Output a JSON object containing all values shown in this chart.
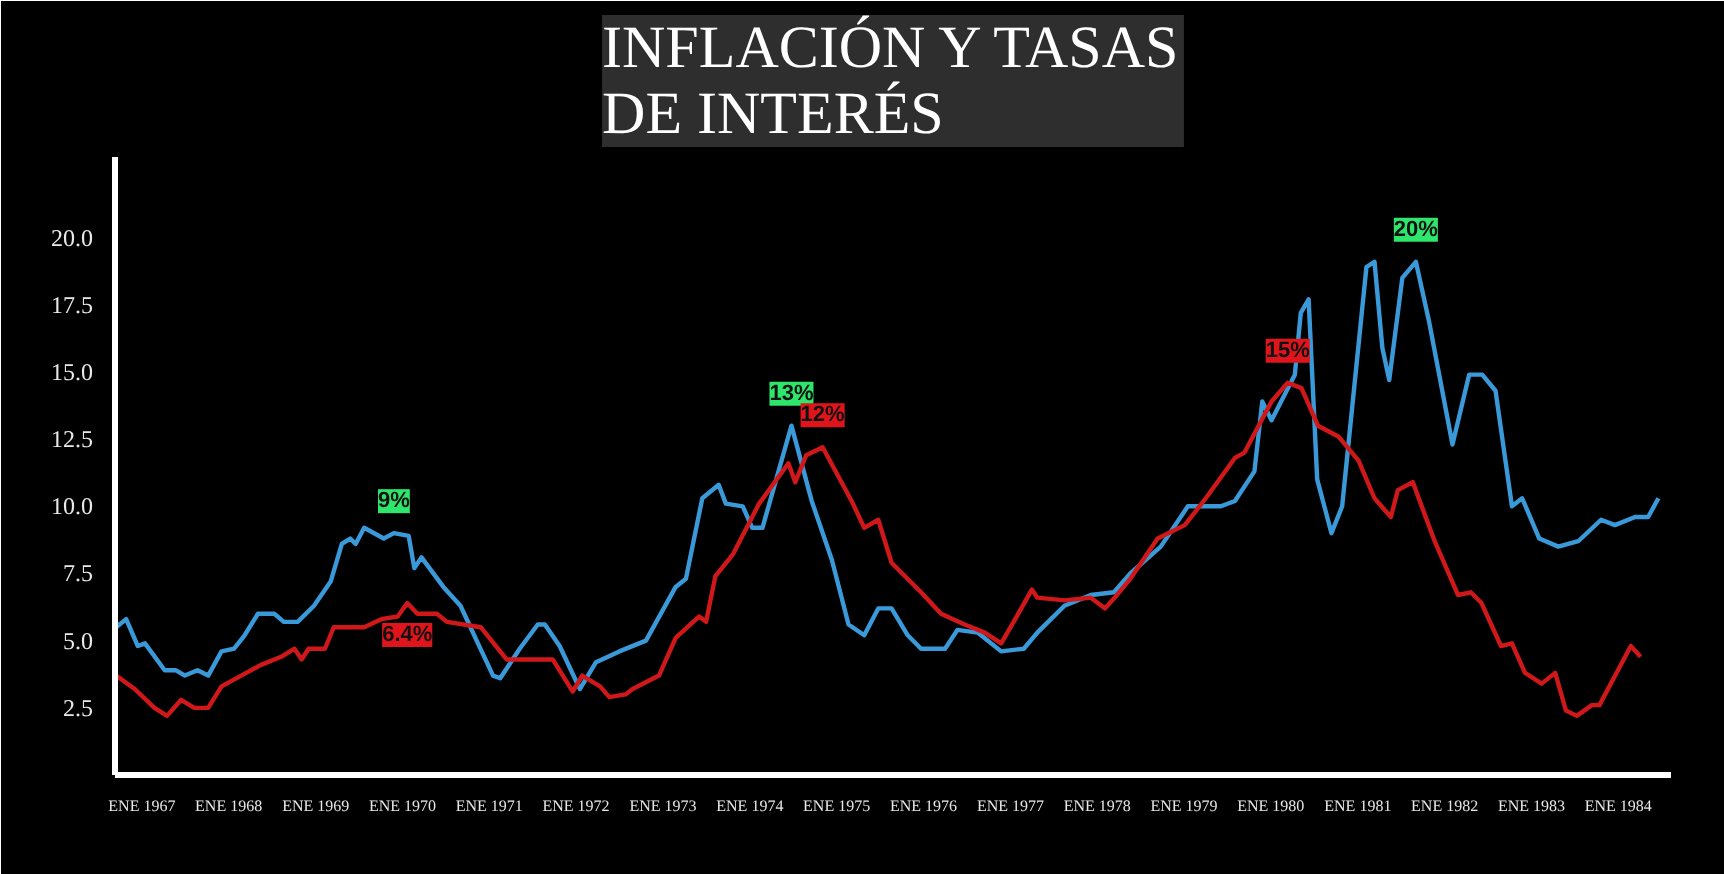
{
  "chart_data": {
    "type": "line",
    "title": "INFLACIÓN Y TASAS\nDE INTERÉS",
    "xlim": [
      "1966-09-10",
      "1984-08-10"
    ],
    "ylim": [
      0,
      23
    ],
    "xticks": [
      {
        "value": "1967-01",
        "label": "ENE 1967"
      },
      {
        "value": "1968-01",
        "label": "ENE 1968"
      },
      {
        "value": "1969-01",
        "label": "ENE 1969"
      },
      {
        "value": "1970-01",
        "label": "ENE 1970"
      },
      {
        "value": "1971-01",
        "label": "ENE 1971"
      },
      {
        "value": "1972-01",
        "label": "ENE 1972"
      },
      {
        "value": "1973-01",
        "label": "ENE 1973"
      },
      {
        "value": "1974-01",
        "label": "ENE 1974"
      },
      {
        "value": "1975-01",
        "label": "ENE 1975"
      },
      {
        "value": "1976-01",
        "label": "ENE 1976"
      },
      {
        "value": "1977-01",
        "label": "ENE 1977"
      },
      {
        "value": "1978-01",
        "label": "ENE 1978"
      },
      {
        "value": "1979-01",
        "label": "ENE 1979"
      },
      {
        "value": "1980-01",
        "label": "ENE 1980"
      },
      {
        "value": "1981-01",
        "label": "ENE 1981"
      },
      {
        "value": "1982-01",
        "label": "ENE 1982"
      },
      {
        "value": "1983-01",
        "label": "ENE 1983"
      },
      {
        "value": "1984-01",
        "label": "ENE 1984"
      }
    ],
    "yticks": [
      {
        "value": 2.5,
        "label": "2.5"
      },
      {
        "value": 5,
        "label": "5.0"
      },
      {
        "value": 7.5,
        "label": "7.5"
      },
      {
        "value": 10,
        "label": "10.0"
      },
      {
        "value": 12.5,
        "label": "12.5"
      },
      {
        "value": 15,
        "label": "15.0"
      },
      {
        "value": 17.5,
        "label": "17.5"
      },
      {
        "value": 20,
        "label": "20.0"
      }
    ],
    "grid": false,
    "line_style": "solid",
    "series": [
      {
        "color": "#3a9ad9",
        "x": [
          "1966-09-15",
          "1966-10-27",
          "1966-12-15",
          "1967-01-14",
          "1967-04-07",
          "1967-05-23",
          "1967-07-01",
          "1967-08-23",
          "1967-10-07",
          "1967-12-02",
          "1968-01-24",
          "1968-03-08",
          "1968-05-03",
          "1968-07-11",
          "1968-08-20",
          "1968-10-17",
          "1968-12-25",
          "1969-03-05",
          "1969-04-21",
          "1969-05-26",
          "1969-06-18",
          "1969-07-24",
          "1969-10-14",
          "1969-11-26",
          "1970-01-27",
          "1970-02-20",
          "1970-03-22",
          "1970-06-22",
          "1970-09-02",
          "1970-11-09",
          "1971-01-17",
          "1971-02-16",
          "1971-05-09",
          "1971-07-24",
          "1971-08-23",
          "1971-10-24",
          "1972-01-17",
          "1972-03-25",
          "1972-07-01",
          "1972-10-21",
          "1973-02-23",
          "1973-04-07",
          "1973-06-15",
          "1973-08-23",
          "1973-09-22",
          "1973-12-02",
          "1974-01-11",
          "1974-02-23",
          "1974-06-25",
          "1974-09-18",
          "1974-12-12",
          "1975-02-20",
          "1975-04-27",
          "1975-06-25",
          "1975-08-20",
          "1975-10-27",
          "1975-12-22",
          "1976-04-01",
          "1976-05-23",
          "1976-08-16",
          "1976-11-23",
          "1977-02-26",
          "1977-04-24",
          "1977-08-16",
          "1977-12-05",
          "1978-03-12",
          "1978-05-20",
          "1978-09-25",
          "1979-01-17",
          "1979-06-05",
          "1979-08-03",
          "1979-10-24",
          "1979-11-26",
          "1980-01-04",
          "1980-04-11",
          "1980-05-06",
          "1980-06-08",
          "1980-07-14",
          "1980-09-12",
          "1980-10-27",
          "1981-02-06",
          "1981-03-12",
          "1981-04-14",
          "1981-05-13",
          "1981-07-07",
          "1981-09-02",
          "1981-10-27",
          "1982-02-03",
          "1982-04-14",
          "1982-06-08",
          "1982-08-03",
          "1982-10-11",
          "1982-11-23",
          "1983-02-03",
          "1983-04-24",
          "1983-07-17",
          "1983-10-21",
          "1983-12-18",
          "1984-03-12",
          "1984-05-06",
          "1984-06-18"
        ],
        "values": [
          5.5,
          5.8,
          4.8,
          4.9,
          3.9,
          3.9,
          3.7,
          3.9,
          3.7,
          4.6,
          4.7,
          5.2,
          6.0,
          6.0,
          5.7,
          5.7,
          6.3,
          7.2,
          8.6,
          8.8,
          8.6,
          9.2,
          8.8,
          9.0,
          8.9,
          7.7,
          8.1,
          7.0,
          6.3,
          5.0,
          3.7,
          3.6,
          4.7,
          5.6,
          5.6,
          4.8,
          3.2,
          4.2,
          4.6,
          5.0,
          7.0,
          7.3,
          10.3,
          10.8,
          10.1,
          10.0,
          9.2,
          9.2,
          13.0,
          10.2,
          8.0,
          5.6,
          5.2,
          6.2,
          6.2,
          5.2,
          4.7,
          4.7,
          5.4,
          5.3,
          4.6,
          4.7,
          5.3,
          6.3,
          6.7,
          6.8,
          7.5,
          8.5,
          10.0,
          10.0,
          10.2,
          11.3,
          13.9,
          13.2,
          14.9,
          17.2,
          17.7,
          11.0,
          9.0,
          10.0,
          18.9,
          19.1,
          15.9,
          14.7,
          18.5,
          19.1,
          16.9,
          12.3,
          14.9,
          14.9,
          14.3,
          10.0,
          10.3,
          8.8,
          8.5,
          8.7,
          9.5,
          9.3,
          9.6,
          9.6,
          10.3
        ]
      },
      {
        "color": "#d0181b",
        "x": [
          "1966-09-15",
          "1966-12-02",
          "1967-02-23",
          "1967-04-17",
          "1967-06-15",
          "1967-08-09",
          "1967-10-07",
          "1967-12-02",
          "1968-02-23",
          "1968-05-16",
          "1968-08-09",
          "1968-10-04",
          "1968-11-03",
          "1968-12-02",
          "1969-02-09",
          "1969-03-18",
          "1969-07-24",
          "1969-10-04",
          "1969-12-12",
          "1970-01-21",
          "1970-03-05",
          "1970-05-26",
          "1970-07-07",
          "1970-11-26",
          "1971-03-15",
          "1971-04-11",
          "1971-09-25",
          "1971-12-18",
          "1972-01-27",
          "1972-04-11",
          "1972-05-20",
          "1972-07-27",
          "1972-08-26",
          "1972-12-15",
          "1973-02-23",
          "1973-06-02",
          "1973-07-01",
          "1973-08-09",
          "1973-10-21",
          "1974-02-09",
          "1974-06-12",
          "1974-07-11",
          "1974-08-26",
          "1974-11-03",
          "1975-03-05",
          "1975-04-27",
          "1975-06-25",
          "1975-08-20",
          "1975-12-22",
          "1976-03-15",
          "1976-06-22",
          "1976-09-15",
          "1976-11-23",
          "1977-01-21",
          "1977-04-01",
          "1977-04-24",
          "1977-08-16",
          "1977-12-05",
          "1978-02-03",
          "1978-03-25",
          "1978-05-20",
          "1978-09-12",
          "1979-01-04",
          "1979-03-25",
          "1979-08-03",
          "1979-09-12",
          "1980-01-04",
          "1980-03-12",
          "1980-05-09",
          "1980-07-17",
          "1980-10-11",
          "1981-01-04",
          "1981-03-12",
          "1981-05-20",
          "1981-06-18",
          "1981-08-20",
          "1981-11-20",
          "1982-02-26",
          "1982-04-21",
          "1982-06-05",
          "1982-08-26",
          "1982-10-11",
          "1982-12-05",
          "1983-02-13",
          "1983-04-11",
          "1983-05-26",
          "1983-07-11",
          "1983-09-12",
          "1983-10-14",
          "1984-02-23",
          "1984-04-04"
        ],
        "values": [
          3.7,
          3.2,
          2.5,
          2.2,
          2.8,
          2.5,
          2.5,
          3.3,
          3.7,
          4.1,
          4.4,
          4.7,
          4.3,
          4.7,
          4.7,
          5.5,
          5.5,
          5.8,
          5.9,
          6.4,
          6.0,
          6.0,
          5.7,
          5.5,
          4.3,
          4.3,
          4.3,
          3.1,
          3.7,
          3.3,
          2.9,
          3.0,
          3.2,
          3.7,
          5.1,
          5.9,
          5.7,
          7.4,
          8.2,
          10.1,
          11.6,
          10.9,
          11.9,
          12.2,
          10.2,
          9.2,
          9.5,
          7.9,
          6.8,
          6.0,
          5.6,
          5.3,
          4.9,
          5.8,
          6.9,
          6.6,
          6.5,
          6.6,
          6.2,
          6.7,
          7.3,
          8.8,
          9.3,
          10.2,
          11.8,
          12.0,
          13.9,
          14.6,
          14.4,
          13.0,
          12.6,
          11.7,
          10.3,
          9.6,
          10.6,
          10.9,
          8.7,
          6.7,
          6.8,
          6.4,
          4.8,
          4.9,
          3.8,
          3.4,
          3.8,
          2.4,
          2.2,
          2.6,
          2.6,
          4.8,
          4.4
        ]
      }
    ],
    "annotations": [
      {
        "text": "9%",
        "x": "1969-11-26",
        "y": 9.0
      },
      {
        "text": "6.4%",
        "x": "1970-01-21",
        "y": 6.4
      },
      {
        "text": "13%",
        "x": "1974-06-25",
        "y": 13.0
      },
      {
        "text": "12%",
        "x": "1974-11-03",
        "y": 12.2
      },
      {
        "text": "15%",
        "x": "1980-03-12",
        "y": 14.6
      },
      {
        "text": "20%",
        "x": "1981-09-02",
        "y": 19.1
      }
    ]
  }
}
